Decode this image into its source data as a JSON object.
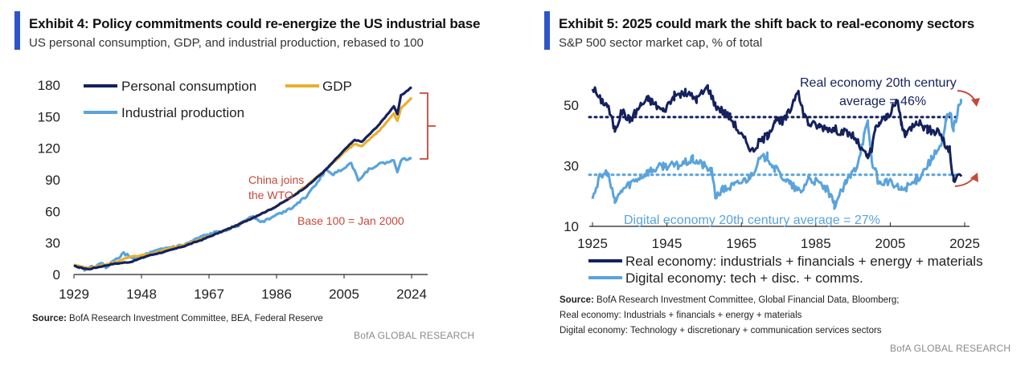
{
  "exhibit4": {
    "title": "Exhibit 4: Policy commitments could re-energize the US industrial base",
    "subtitle": "US personal consumption, GDP, and industrial production, rebased to 100",
    "source_label": "Source:",
    "source_text": " BofA Research Investment Committee, BEA, Federal Reserve",
    "brand": "BofA GLOBAL RESEARCH",
    "colors": {
      "consumption": "#14215e",
      "gdp": "#e8b02e",
      "industrial": "#5aa3dc",
      "annotation": "#c8483a",
      "accent": "#2e55c7"
    },
    "annotations": {
      "wto_line1": "China joins",
      "wto_line2": "the WTO",
      "base": "Base 100 = Jan 2000"
    },
    "chart_data": {
      "type": "line",
      "x_ticks": [
        "1929",
        "1948",
        "1967",
        "1986",
        "2005",
        "2024"
      ],
      "y_ticks": [
        "0",
        "30",
        "60",
        "90",
        "120",
        "150",
        "180"
      ],
      "xlim": [
        1929,
        2024
      ],
      "ylim": [
        0,
        180
      ],
      "legend": "top-left",
      "series": [
        {
          "name": "Personal consumption",
          "color": "#14215e",
          "x": [
            1929,
            1933,
            1940,
            1945,
            1950,
            1955,
            1960,
            1965,
            1970,
            1975,
            1980,
            1985,
            1990,
            1995,
            2000,
            2005,
            2008,
            2010,
            2015,
            2019,
            2020,
            2021,
            2024
          ],
          "y": [
            8,
            5,
            10,
            12,
            18,
            22,
            27,
            33,
            40,
            47,
            55,
            63,
            73,
            85,
            100,
            118,
            128,
            126,
            143,
            160,
            152,
            170,
            178
          ]
        },
        {
          "name": "GDP",
          "color": "#e8b02e",
          "x": [
            1929,
            1933,
            1940,
            1945,
            1950,
            1955,
            1960,
            1965,
            1970,
            1975,
            1980,
            1985,
            1990,
            1995,
            2000,
            2005,
            2008,
            2010,
            2015,
            2019,
            2020,
            2021,
            2024
          ],
          "y": [
            9,
            6,
            11,
            17,
            19,
            24,
            28,
            34,
            40,
            47,
            55,
            63,
            73,
            86,
            100,
            116,
            124,
            122,
            137,
            153,
            146,
            158,
            168
          ]
        },
        {
          "name": "Industrial production",
          "color": "#5aa3dc",
          "x": [
            1929,
            1932,
            1937,
            1938,
            1943,
            1946,
            1950,
            1955,
            1960,
            1965,
            1970,
            1975,
            1979,
            1982,
            1990,
            1995,
            2000,
            2002,
            2007,
            2009,
            2012,
            2015,
            2019,
            2020,
            2021,
            2024
          ],
          "y": [
            9,
            5,
            10,
            7,
            20,
            15,
            20,
            25,
            28,
            36,
            41,
            46,
            56,
            50,
            63,
            76,
            100,
            95,
            106,
            90,
            100,
            105,
            108,
            98,
            109,
            110
          ]
        }
      ]
    }
  },
  "exhibit5": {
    "title": "Exhibit 5: 2025 could mark the shift back to real-economy sectors",
    "subtitle": "S&P 500 sector market cap, % of total",
    "source_label": "Source:",
    "source_text": " BofA Research Investment Committee, Global Financial Data, Bloomberg;",
    "source_line2": "Real economy: Industrials + financials + energy + materials",
    "source_line3": "Digital economy: Technology + discretionary + communication services sectors",
    "brand": "BofA GLOBAL RESEARCH",
    "colors": {
      "real": "#14215e",
      "digital": "#5aa3dc",
      "arrow": "#c8483a"
    },
    "annotations": {
      "real_avg_line1": "Real economy 20th century",
      "real_avg_line2": "average = 46%",
      "digital_avg": "Digital economy 20th century average = 27%"
    },
    "chart_data": {
      "type": "line",
      "x_ticks": [
        "1925",
        "1945",
        "1965",
        "1985",
        "2005",
        "2025"
      ],
      "y_ticks": [
        "10",
        "30",
        "50"
      ],
      "xlim": [
        1925,
        2025
      ],
      "ylim": [
        10,
        60
      ],
      "reference_lines": [
        {
          "label": "Real economy 20th century average",
          "y": 46
        },
        {
          "label": "Digital economy 20th century average",
          "y": 27
        }
      ],
      "legend": "bottom",
      "series": [
        {
          "name": "Real economy: industrials + financials + energy + materials",
          "color": "#14215e",
          "x": [
            1925,
            1927,
            1929,
            1931,
            1933,
            1935,
            1938,
            1940,
            1944,
            1947,
            1950,
            1953,
            1956,
            1958,
            1960,
            1962,
            1965,
            1968,
            1970,
            1972,
            1974,
            1976,
            1978,
            1980,
            1981,
            1983,
            1986,
            1990,
            1995,
            1998,
            1999,
            2000,
            2001,
            2002,
            2004,
            2007,
            2008,
            2009,
            2012,
            2015,
            2017,
            2018,
            2020,
            2021,
            2022,
            2024
          ],
          "y": [
            56,
            52,
            50,
            42,
            48,
            45,
            50,
            52,
            48,
            53,
            54,
            52,
            56,
            50,
            48,
            46,
            40,
            35,
            38,
            40,
            45,
            44,
            48,
            55,
            50,
            44,
            43,
            42,
            40,
            34,
            33,
            35,
            42,
            44,
            46,
            51,
            44,
            40,
            45,
            42,
            41,
            42,
            36,
            35,
            25,
            27
          ]
        },
        {
          "name": "Digital economy: tech + disc. + comms.",
          "color": "#5aa3dc",
          "x": [
            1925,
            1927,
            1929,
            1931,
            1933,
            1936,
            1940,
            1944,
            1948,
            1952,
            1955,
            1957,
            1958,
            1960,
            1964,
            1967,
            1970,
            1972,
            1974,
            1978,
            1981,
            1983,
            1986,
            1988,
            1990,
            1993,
            1996,
            1998,
            1999,
            2000,
            2001,
            2002,
            2004,
            2008,
            2012,
            2016,
            2019,
            2020,
            2021,
            2022,
            2024
          ],
          "y": [
            20,
            26,
            28,
            18,
            22,
            25,
            28,
            30,
            30,
            32,
            30,
            28,
            20,
            22,
            24,
            26,
            32,
            33,
            29,
            24,
            21,
            26,
            24,
            22,
            17,
            24,
            30,
            40,
            44,
            32,
            28,
            24,
            25,
            22,
            25,
            32,
            37,
            45,
            48,
            42,
            52
          ]
        }
      ]
    }
  }
}
